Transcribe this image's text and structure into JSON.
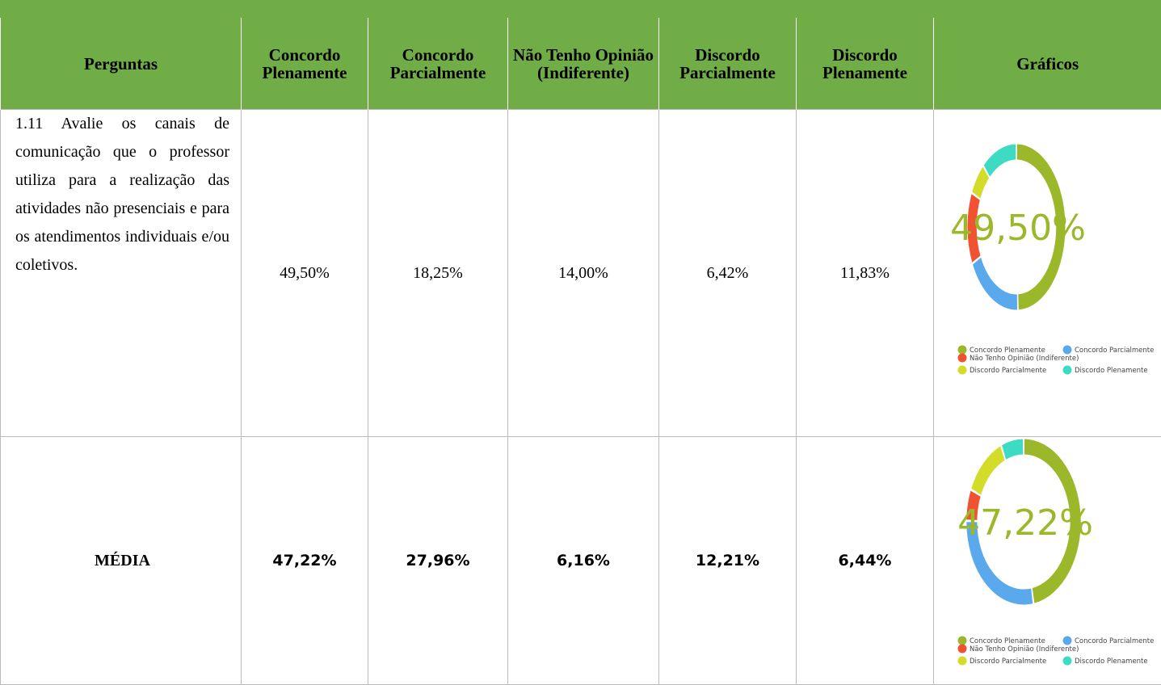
{
  "table": {
    "headers": [
      "Perguntas",
      "Concordo Plenamente",
      "Concordo Parcialmente",
      "Não Tenho Opinião (Indiferente)",
      "Discordo Parcialmente",
      "Discordo Plenamente",
      "Gráficos"
    ],
    "rows": [
      {
        "question": "1.11 Avalie os canais de comunicação que o professor utiliza para a realização das atividades não presenciais e para os atendimentos individuais e/ou coletivos.",
        "values": [
          "49,50%",
          "18,25%",
          "14,00%",
          "6,42%",
          "11,83%"
        ],
        "chart": {
          "type": "donut",
          "center_label": "49,50%",
          "series": [
            {
              "name": "Concordo Plenamente",
              "color": "#9ab82a",
              "value": 49.5
            },
            {
              "name": "Concordo Parcialmente",
              "color": "#5aa9ec",
              "value": 18.25
            },
            {
              "name": "Não Tenho Opinião (Indiferente)",
              "color": "#f05232",
              "value": 14
            },
            {
              "name": "Discordo Parcialmente",
              "color": "#d4dc2a",
              "value": 6.42
            },
            {
              "name": "Discordo Plenamente",
              "color": "#3ddbc4",
              "value": 11.83
            }
          ]
        }
      },
      {
        "question": "MÉDIA",
        "values": [
          "47,22%",
          "27,96%",
          "6,16%",
          "12,21%",
          "6,44%"
        ],
        "chart": {
          "type": "donut",
          "center_label": "47,22%",
          "series": [
            {
              "name": "Concordo Plenamente",
              "color": "#9ab82a",
              "value": 47.22
            },
            {
              "name": "Concordo Parcialmente",
              "color": "#5aa9ec",
              "value": 27.96
            },
            {
              "name": "Não Tenho Opinião (Indiferente)",
              "color": "#f05232",
              "value": 6.16
            },
            {
              "name": "Discordo Parcialmente",
              "color": "#d4dc2a",
              "value": 12.21
            },
            {
              "name": "Discordo Plenamente",
              "color": "#3ddbc4",
              "value": 6.44
            }
          ]
        }
      }
    ]
  }
}
